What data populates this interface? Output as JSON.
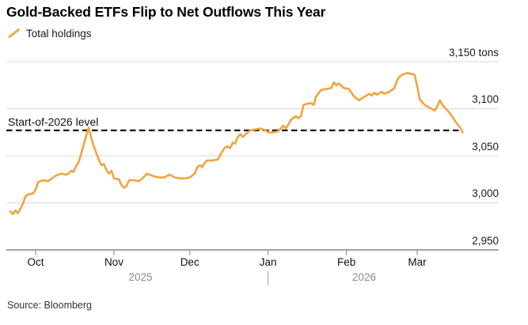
{
  "title": "Gold-Backed ETFs Flip to Net Outflows This Year",
  "legend": {
    "label": "Total holdings"
  },
  "source": "Source: Bloomberg",
  "colors": {
    "line": "#F1A43D",
    "grid": "#DADADA",
    "axis": "#A3A3A3",
    "tick": "#9B9B9B",
    "reference_dash": "#111111",
    "year_text": "#8C8C8C"
  },
  "chart_data": {
    "type": "line",
    "title": "Gold-Backed ETFs Flip to Net Outflows This Year",
    "series_name": "Total holdings",
    "unit": "tons",
    "ylim": [
      2950,
      3150
    ],
    "grid": "horizontal",
    "legend_position": "top-left",
    "y_ticks": [
      {
        "value": 3150,
        "label": "3,150 tons"
      },
      {
        "value": 3100,
        "label": "3,100"
      },
      {
        "value": 3050,
        "label": "3,050"
      },
      {
        "value": 3000,
        "label": "3,000"
      },
      {
        "value": 2950,
        "label": "2,950"
      }
    ],
    "x_unit": "days since 2025-10-01",
    "x_ticks": [
      {
        "label": "Oct",
        "t": 0
      },
      {
        "label": "Nov",
        "t": 31
      },
      {
        "label": "Dec",
        "t": 61
      },
      {
        "label": "Jan",
        "t": 92
      },
      {
        "label": "Feb",
        "t": 123
      },
      {
        "label": "Mar",
        "t": 151
      }
    ],
    "year_labels": [
      {
        "label": "2025",
        "t": 41.5
      },
      {
        "label": "2026",
        "t": 130
      }
    ],
    "year_divider_t": 92,
    "reference_line": {
      "label": "Start-of-2026 level",
      "value": 3077
    },
    "points": [
      [
        -10,
        2991
      ],
      [
        -9,
        2988
      ],
      [
        -8,
        2992
      ],
      [
        -7,
        2989
      ],
      [
        -5,
        2999
      ],
      [
        -4,
        3007
      ],
      [
        -3,
        3009
      ],
      [
        -1,
        3010
      ],
      [
        0,
        3014
      ],
      [
        1,
        3022
      ],
      [
        3,
        3024
      ],
      [
        5,
        3023
      ],
      [
        7,
        3027
      ],
      [
        8,
        3029
      ],
      [
        10,
        3031
      ],
      [
        12,
        3030
      ],
      [
        13,
        3031
      ],
      [
        14,
        3034
      ],
      [
        15,
        3033
      ],
      [
        16,
        3039
      ],
      [
        17,
        3043
      ],
      [
        18,
        3052
      ],
      [
        19,
        3061
      ],
      [
        20,
        3071
      ],
      [
        21,
        3080
      ],
      [
        22,
        3069
      ],
      [
        23,
        3060
      ],
      [
        24,
        3053
      ],
      [
        25,
        3046
      ],
      [
        26,
        3040
      ],
      [
        27,
        3041
      ],
      [
        28,
        3035
      ],
      [
        29,
        3031
      ],
      [
        30,
        3034
      ],
      [
        31,
        3026
      ],
      [
        33,
        3025
      ],
      [
        34,
        3019
      ],
      [
        35,
        3016
      ],
      [
        36,
        3018
      ],
      [
        37,
        3024
      ],
      [
        39,
        3024
      ],
      [
        41,
        3023
      ],
      [
        43,
        3028
      ],
      [
        44,
        3031
      ],
      [
        45,
        3030
      ],
      [
        47,
        3028
      ],
      [
        49,
        3027
      ],
      [
        51,
        3027
      ],
      [
        53,
        3030
      ],
      [
        55,
        3027
      ],
      [
        57,
        3026
      ],
      [
        59,
        3026
      ],
      [
        61,
        3027
      ],
      [
        63,
        3031
      ],
      [
        64,
        3038
      ],
      [
        65,
        3040
      ],
      [
        66,
        3038
      ],
      [
        67,
        3043
      ],
      [
        68,
        3045
      ],
      [
        70,
        3045
      ],
      [
        72,
        3046
      ],
      [
        74,
        3055
      ],
      [
        75,
        3059
      ],
      [
        76,
        3060
      ],
      [
        77,
        3058
      ],
      [
        78,
        3064
      ],
      [
        79,
        3063
      ],
      [
        80,
        3070
      ],
      [
        81,
        3073
      ],
      [
        82,
        3070
      ],
      [
        84,
        3075
      ],
      [
        85,
        3077
      ],
      [
        87,
        3078
      ],
      [
        89,
        3079
      ],
      [
        91,
        3077
      ],
      [
        92,
        3075
      ],
      [
        94,
        3075
      ],
      [
        96,
        3076
      ],
      [
        98,
        3082
      ],
      [
        99,
        3079
      ],
      [
        100,
        3083
      ],
      [
        101,
        3088
      ],
      [
        102,
        3090
      ],
      [
        103,
        3092
      ],
      [
        104,
        3090
      ],
      [
        105,
        3092
      ],
      [
        106,
        3104
      ],
      [
        107,
        3105
      ],
      [
        109,
        3106
      ],
      [
        110,
        3104
      ],
      [
        111,
        3113
      ],
      [
        113,
        3120
      ],
      [
        115,
        3121
      ],
      [
        117,
        3122
      ],
      [
        118,
        3128
      ],
      [
        119,
        3125
      ],
      [
        120,
        3127
      ],
      [
        122,
        3122
      ],
      [
        124,
        3121
      ],
      [
        126,
        3113
      ],
      [
        128,
        3109
      ],
      [
        129,
        3111
      ],
      [
        131,
        3114
      ],
      [
        132,
        3116
      ],
      [
        133,
        3114
      ],
      [
        134,
        3117
      ],
      [
        135,
        3115
      ],
      [
        137,
        3118
      ],
      [
        138,
        3116
      ],
      [
        140,
        3118
      ],
      [
        142,
        3122
      ],
      [
        143,
        3130
      ],
      [
        144,
        3134
      ],
      [
        145,
        3136
      ],
      [
        147,
        3138
      ],
      [
        149,
        3137
      ],
      [
        150,
        3136
      ],
      [
        151,
        3124
      ],
      [
        152,
        3110
      ],
      [
        153,
        3107
      ],
      [
        154,
        3104
      ],
      [
        156,
        3101
      ],
      [
        158,
        3098
      ],
      [
        159,
        3103
      ],
      [
        160,
        3109
      ],
      [
        161,
        3104
      ],
      [
        162,
        3101
      ],
      [
        164,
        3095
      ],
      [
        165,
        3091
      ],
      [
        166,
        3087
      ],
      [
        167,
        3083
      ],
      [
        168,
        3080
      ],
      [
        169,
        3075
      ]
    ]
  }
}
